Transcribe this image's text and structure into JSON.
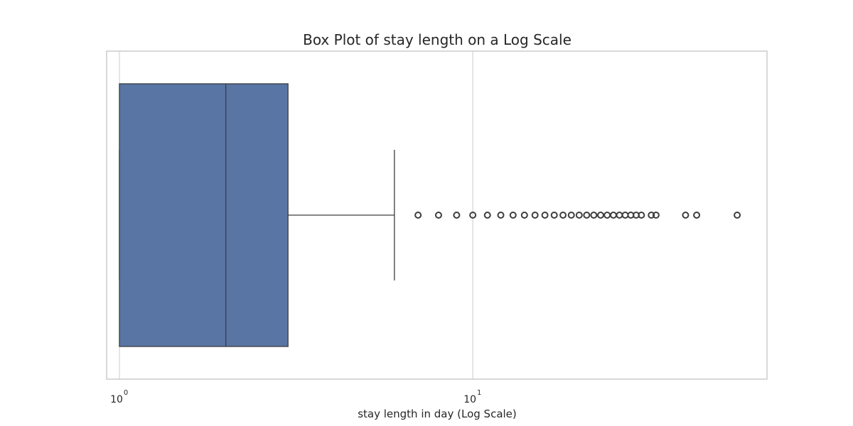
{
  "chart_data": {
    "type": "box",
    "orientation": "horizontal",
    "title": "Box Plot of stay length on a Log Scale",
    "xlabel": "stay length in day (Log Scale)",
    "ylabel": "",
    "xscale": "log",
    "xlim": [
      0.92,
      68
    ],
    "xticks": [
      {
        "value": 1,
        "base": "10",
        "exp": "0"
      },
      {
        "value": 10,
        "base": "10",
        "exp": "1"
      }
    ],
    "grid": true,
    "box": {
      "whisker_low": 1,
      "q1": 1,
      "median": 2,
      "q3": 3,
      "whisker_high": 6,
      "color": "#5875a4",
      "edge_color": "#3d3d3d"
    },
    "outliers": [
      7,
      8,
      9,
      10,
      11,
      12,
      13,
      14,
      15,
      16,
      17,
      18,
      19,
      20,
      21,
      22,
      23,
      24,
      25,
      26,
      27,
      28,
      29,
      30,
      32,
      33,
      40,
      43,
      56
    ],
    "colors": {
      "frame": "#cccccc",
      "grid": "#d4d4d4",
      "outlier_edge": "#3d3d3d"
    }
  }
}
